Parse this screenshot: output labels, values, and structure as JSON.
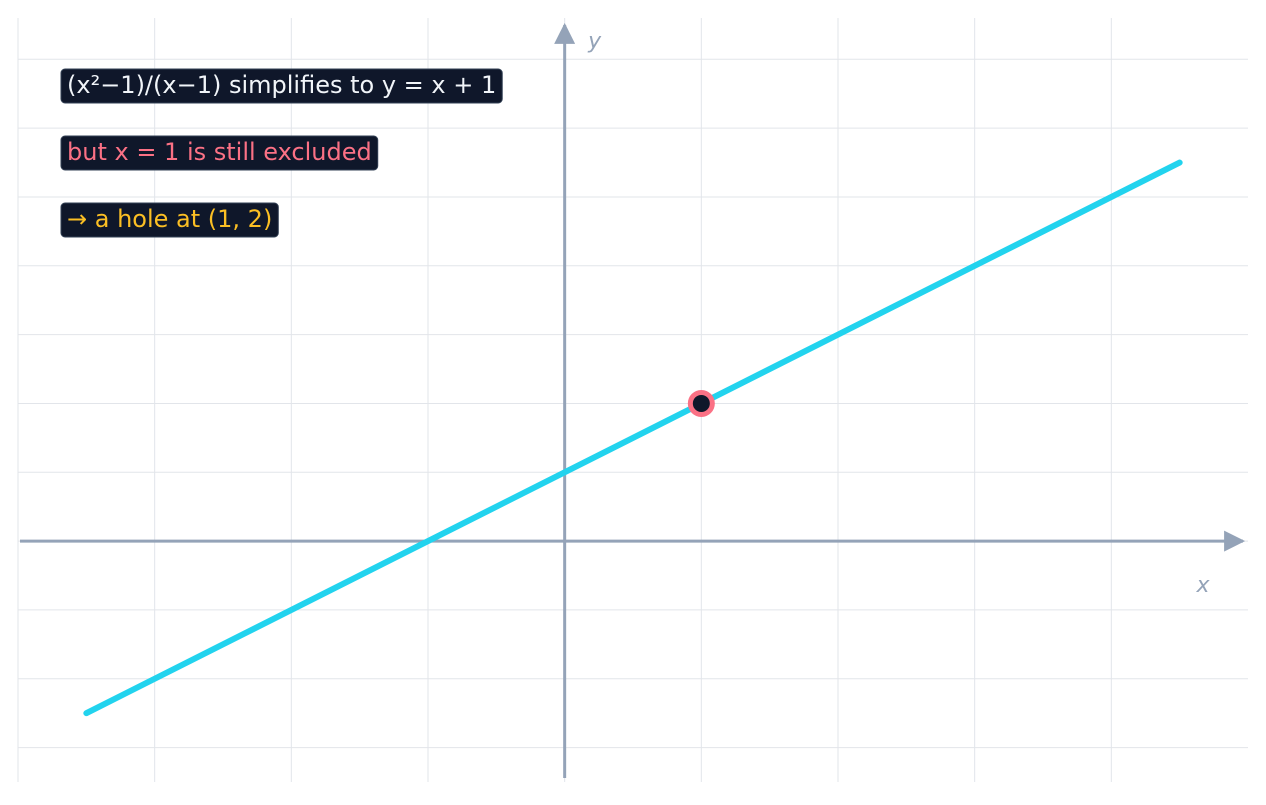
{
  "chart_data": {
    "type": "line",
    "x_label": "x",
    "y_label": "y",
    "xlim": [
      -4,
      5
    ],
    "ylim": [
      -3.5,
      7.6
    ],
    "xticks": [
      -4,
      -3,
      -2,
      -1,
      0,
      1,
      2,
      3,
      4
    ],
    "yticks": [
      -3,
      -2,
      -1,
      0,
      1,
      2,
      3,
      4,
      5,
      6,
      7
    ],
    "grid": true,
    "axis_color": "#94a3b8",
    "series": [
      {
        "color": "#22d3ee",
        "x": [
          -3.5,
          4.5
        ],
        "values": [
          -2.5,
          5.5
        ]
      }
    ],
    "hole": {
      "x": 1,
      "y": 2,
      "color": "#fb7185",
      "fill": "#0f172a"
    },
    "annotations": [
      {
        "text": "(x²−1)/(x−1) simplifies to y = x + 1",
        "color": "#f1f5f9"
      },
      {
        "text": "but x = 1 is still excluded",
        "color": "#fb7185"
      },
      {
        "text": "→ a hole at (1, 2)",
        "color": "#fbbf24"
      }
    ]
  }
}
